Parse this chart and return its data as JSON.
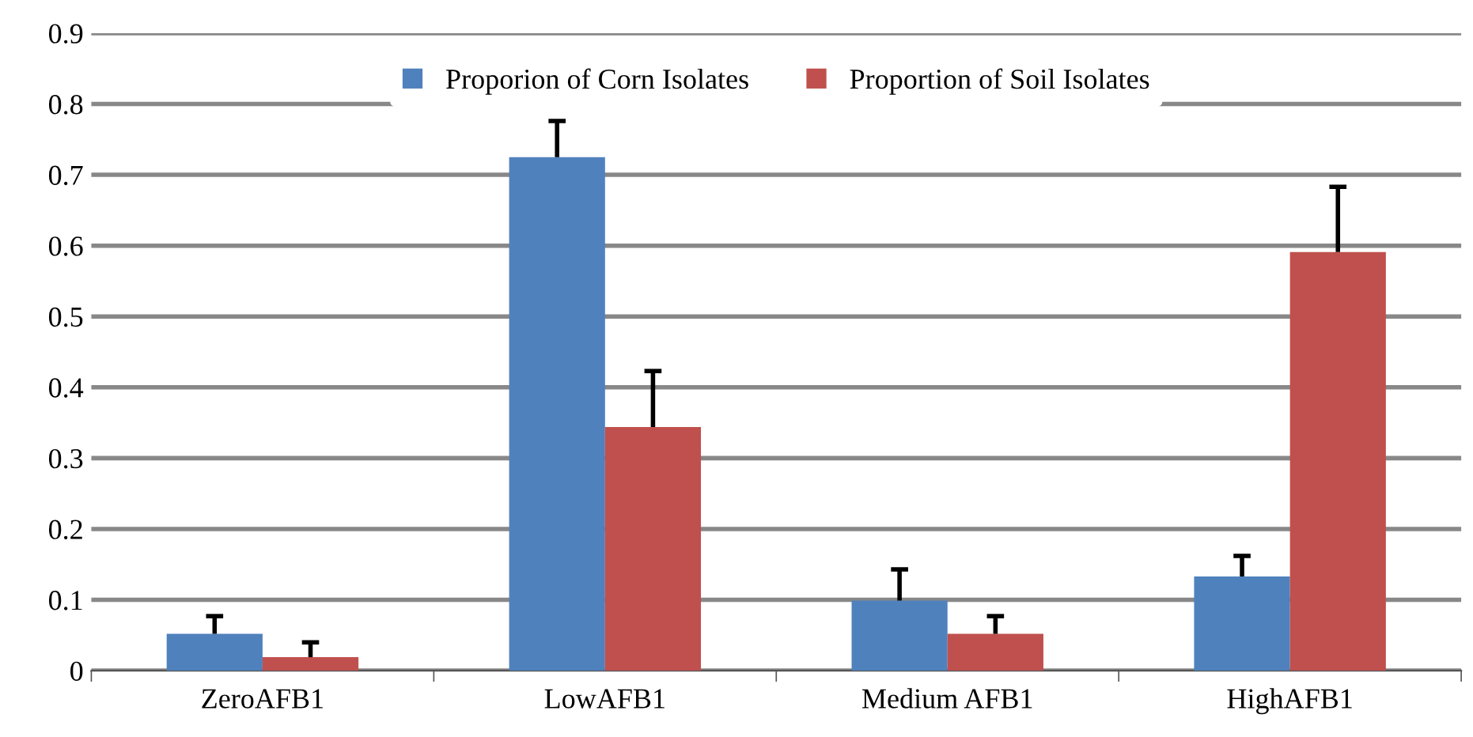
{
  "chart_data": {
    "type": "bar",
    "categories": [
      "ZeroAFB1",
      "LowAFB1",
      "Medium AFB1",
      "HighAFB1"
    ],
    "series": [
      {
        "name": "Proporion of Corn Isolates",
        "color": "#4f81bd",
        "values": [
          0.052,
          0.725,
          0.099,
          0.133
        ],
        "errors": [
          [
            0.052,
            0.077
          ],
          [
            0.725,
            0.776
          ],
          [
            0.099,
            0.143
          ],
          [
            0.133,
            0.162
          ]
        ]
      },
      {
        "name": "Proportion of Soil Isolates",
        "color": "#c0504d",
        "values": [
          0.019,
          0.344,
          0.052,
          0.591
        ],
        "errors": [
          [
            0.019,
            0.04
          ],
          [
            0.344,
            0.423
          ],
          [
            0.052,
            0.077
          ],
          [
            0.591,
            0.683
          ]
        ]
      }
    ],
    "ylim": [
      0,
      0.9
    ],
    "yticks": [
      0,
      0.1,
      0.2,
      0.3,
      0.4,
      0.5,
      0.6,
      0.7,
      0.8,
      0.9
    ],
    "grid": "y",
    "legend": "top"
  }
}
